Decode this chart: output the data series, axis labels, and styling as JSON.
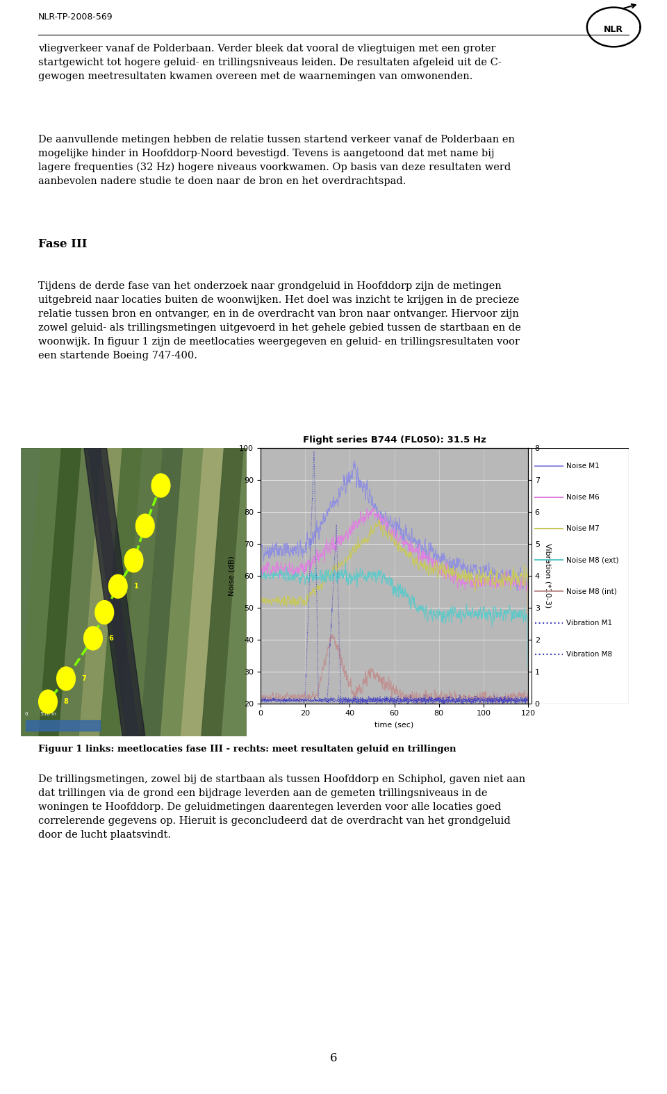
{
  "header_text": "NLR-TP-2008-569",
  "title_chart": "Flight series B744 (FL050): 31.5 Hz",
  "para1": "vliegverkeer vanaf de Polderbaan. Verder bleek dat vooral de vliegtuigen met een groter\nstartgewicht tot hogere geluid- en trillingsniveaus leiden. De resultaten afgeleid uit de C-\ngewogen meetresultaten kwamen overeen met de waarnemingen van omwonenden.",
  "para2": "De aanvullende metingen hebben de relatie tussen startend verkeer vanaf de Polderbaan en\nmogelijke hinder in Hoofddorp-Noord bevestigd. Tevens is aangetoond dat met name bij\nlagere frequenties (32 Hz) hogere niveaus voorkwamen. Op basis van deze resultaten werd\naanbevolen nadere studie te doen naar de bron en het overdrachtspad.",
  "fase_title": "Fase III",
  "fase_para1": "Tijdens de derde fase van het onderzoek naar grondgeluid in Hoofddorp zijn de metingen\nuitgebreid naar locaties buiten de woonwijken. Het doel was inzicht te krijgen in de precieze\nrelatie tussen bron en ontvanger, en in de overdracht van bron naar ontvanger. Hiervoor zijn\nzowel geluid- als trillingsmetingen uitgevoerd in het gehele gebied tussen de startbaan en de\nwoonwijk. In figuur 1 zijn de meetlocaties weergegeven en geluid- en trillingsresultaten voor\neen startende Boeing 747-400.",
  "figuur_caption": "Figuur 1 links: meetlocaties fase III - rechts: meet resultaten geluid en trillingen",
  "bottom_para": "De trillingsmetingen, zowel bij de startbaan als tussen Hoofddorp en Schiphol, gaven niet aan\ndat trillingen via de grond een bijdrage leverden aan de gemeten trillingsniveaus in de\nwoningen te Hoofddorp. De geluidmetingen daarentegen leverden voor alle locaties goed\ncorrelerende gegevens op. Hieruit is geconcludeerd dat de overdracht van het grondgeluid\ndoor de lucht plaatsvindt.",
  "page_number": "6",
  "ylabel_left": "Noise (dB)",
  "ylabel_right": "Vibration (*10-3)",
  "xlabel": "time (sec)",
  "xlim": [
    0,
    120
  ],
  "ylim_left": [
    20,
    100
  ],
  "ylim_right": [
    0,
    8
  ],
  "xticks": [
    0,
    20,
    40,
    60,
    80,
    100,
    120
  ],
  "yticks_left": [
    20,
    30,
    40,
    50,
    60,
    70,
    80,
    90,
    100
  ],
  "yticks_right": [
    0,
    1,
    2,
    3,
    4,
    5,
    6,
    7,
    8
  ],
  "legend_entries": [
    "Noise M1",
    "Noise M6",
    "Noise M7",
    "Noise M8 (ext)",
    "Noise M8 (int)",
    "Vibration M1",
    "Vibration M8"
  ],
  "noise_colors": [
    "#9090e0",
    "#e080e0",
    "#c8c860",
    "#60c8c8",
    "#c09090"
  ],
  "vib_color": "#4040c0",
  "legend_noise_colors": [
    "#9090e0",
    "#e080e0",
    "#c8c860",
    "#60c8c8",
    "#c09090"
  ],
  "legend_vib_color": "#4040c0",
  "bg_color": "#b8b8b8",
  "line_width": 0.7
}
